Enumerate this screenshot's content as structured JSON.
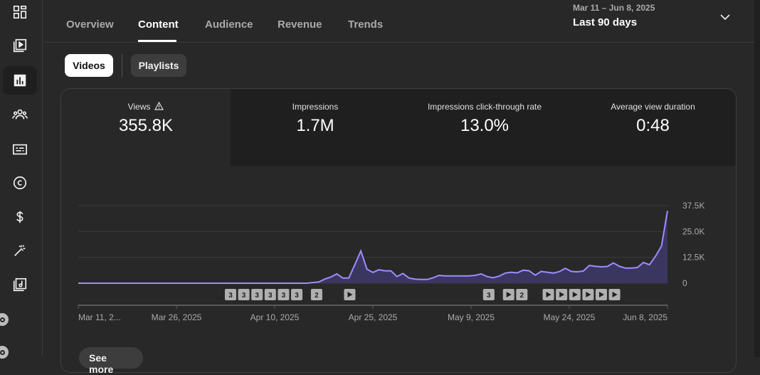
{
  "tabs": [
    {
      "label": "Overview"
    },
    {
      "label": "Content"
    },
    {
      "label": "Audience"
    },
    {
      "label": "Revenue"
    },
    {
      "label": "Trends"
    }
  ],
  "date_picker": {
    "range": "Mar 11 – Jun 8, 2025",
    "label": "Last 90 days"
  },
  "filters": {
    "videos": "Videos",
    "playlists": "Playlists"
  },
  "metrics": [
    {
      "label": "Views",
      "value": "355.8K"
    },
    {
      "label": "Impressions",
      "value": "1.7M"
    },
    {
      "label": "Impressions click-through rate",
      "value": "13.0%"
    },
    {
      "label": "Average view duration",
      "value": "0:48"
    }
  ],
  "see_more": "See more",
  "colors": {
    "line": "#9e8cff",
    "fill": "#3b3660",
    "accent": "#ffffff",
    "background": "#282828"
  },
  "rail_icons": [
    "dashboard-icon",
    "content-icon",
    "analytics-icon",
    "community-icon",
    "subtitles-icon",
    "copyright-icon",
    "earn-icon",
    "customization-icon",
    "audio-library-icon"
  ],
  "chart_data": {
    "type": "area",
    "x_start": "Mar 11, 2025",
    "x_end": "Jun 8, 2025",
    "x_tick_labels": [
      "Mar 11, 2...",
      "Mar 26, 2025",
      "Apr 10, 2025",
      "Apr 25, 2025",
      "May 9, 2025",
      "May 24, 2025",
      "Jun 8, 2025"
    ],
    "y_tick_labels": [
      "37.5K",
      "25.0K",
      "12.5K",
      "0"
    ],
    "ylim": [
      0,
      37500
    ],
    "grid": true,
    "series": [
      {
        "values": [
          0,
          0,
          0,
          0,
          0,
          0,
          0,
          0,
          0,
          0,
          0,
          0,
          0,
          0,
          0,
          0,
          0,
          0,
          0,
          0,
          0,
          0,
          0,
          0,
          0,
          0,
          0,
          0,
          0,
          0,
          0,
          0,
          0,
          0,
          0,
          0,
          0,
          0,
          0,
          300,
          600,
          2000,
          3000,
          4500,
          2500,
          2500,
          9000,
          15600,
          6800,
          5200,
          6500,
          6000,
          6000,
          3200,
          4700,
          2500,
          2000,
          1800,
          1800,
          2600,
          3800,
          3500,
          3500,
          3500,
          3500,
          3500,
          3800,
          4500,
          3200,
          2600,
          3400,
          4900,
          5300,
          5000,
          6300,
          6000,
          3900,
          5700,
          5300,
          4900,
          5600,
          7200,
          5700,
          5500,
          5900,
          8600,
          8200,
          7900,
          8100,
          9800,
          8200,
          7300,
          7300,
          7600,
          10000,
          8900,
          13000,
          18000,
          35000
        ]
      }
    ],
    "markers": [
      {
        "date": "Apr 3, 2025",
        "label": "3"
      },
      {
        "date": "Apr 5, 2025",
        "label": "3"
      },
      {
        "date": "Apr 7, 2025",
        "label": "3"
      },
      {
        "date": "Apr 9, 2025",
        "label": "3"
      },
      {
        "date": "Apr 11, 2025",
        "label": "3"
      },
      {
        "date": "Apr 13, 2025",
        "label": "3"
      },
      {
        "date": "Apr 16, 2025",
        "label": "2"
      },
      {
        "date": "Apr 21, 2025",
        "label": "play"
      },
      {
        "date": "May 12, 2025",
        "label": "3"
      },
      {
        "date": "May 15, 2025",
        "label": "play"
      },
      {
        "date": "May 17, 2025",
        "label": "2"
      },
      {
        "date": "May 21, 2025",
        "label": "play"
      },
      {
        "date": "May 23, 2025",
        "label": "play"
      },
      {
        "date": "May 25, 2025",
        "label": "play"
      },
      {
        "date": "May 27, 2025",
        "label": "play"
      },
      {
        "date": "May 29, 2025",
        "label": "play"
      },
      {
        "date": "May 31, 2025",
        "label": "play"
      }
    ]
  }
}
